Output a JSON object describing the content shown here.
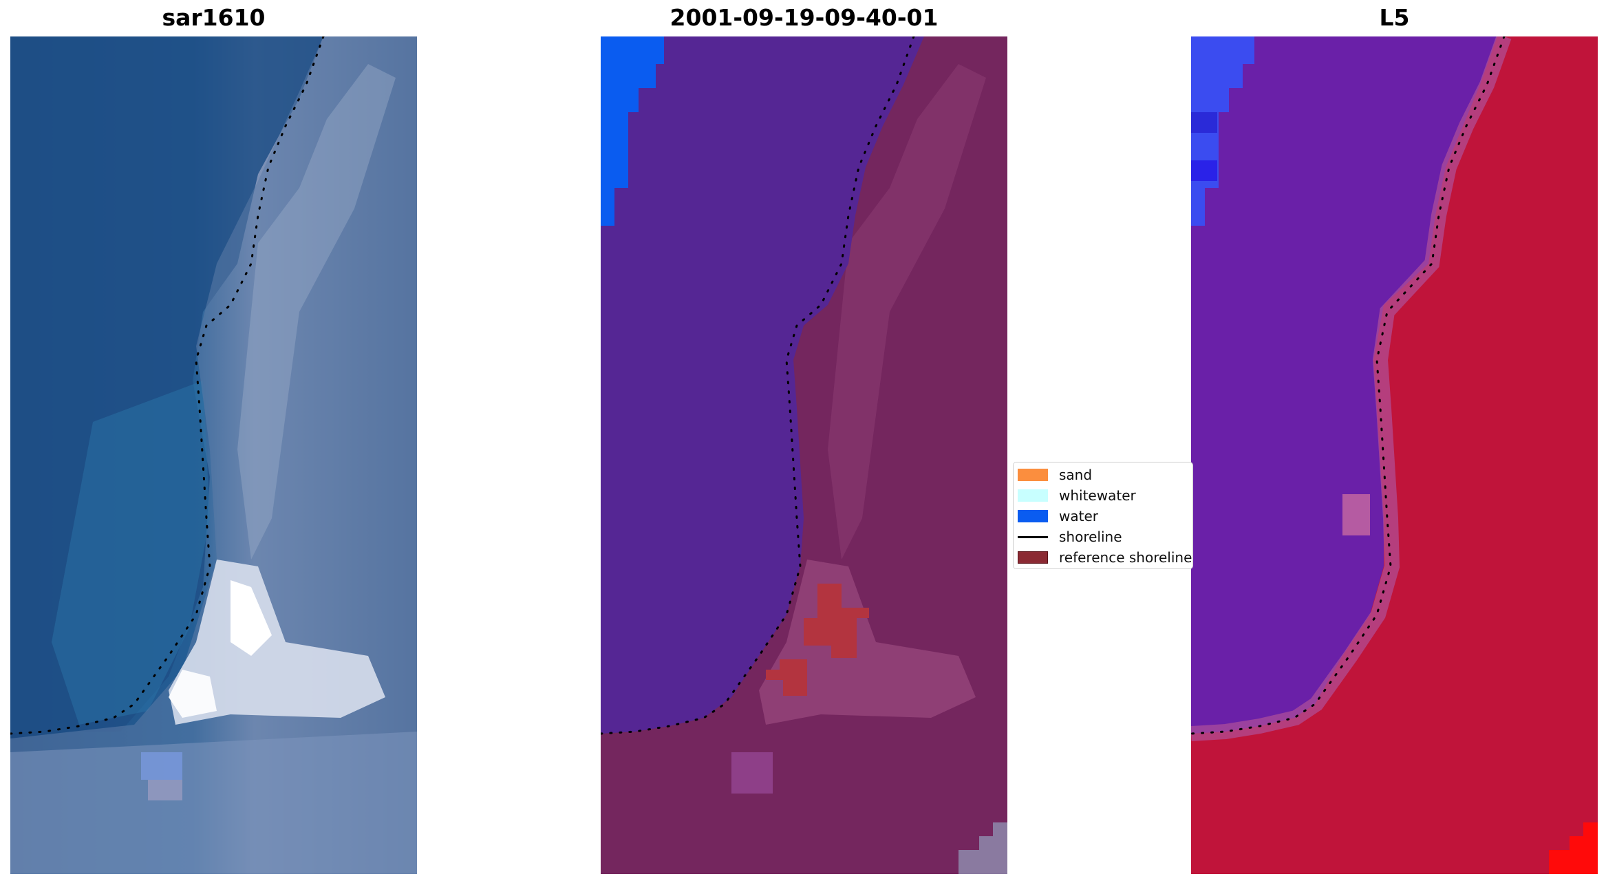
{
  "panels": [
    {
      "id": "rgb",
      "title": "sar1610"
    },
    {
      "id": "classified",
      "title": "2001-09-19-09-40-01"
    },
    {
      "id": "index",
      "title": "L5"
    }
  ],
  "legend": {
    "items": [
      {
        "label": "sand",
        "kind": "patch",
        "color": "#fb8e3e"
      },
      {
        "label": "whitewater",
        "kind": "patch",
        "color": "#c8ffff"
      },
      {
        "label": "water",
        "kind": "patch",
        "color": "#0a5cf0"
      },
      {
        "label": "shoreline",
        "kind": "line",
        "color": "#000000"
      },
      {
        "label": "reference shoreline",
        "kind": "patch",
        "color": "#8b2a33"
      }
    ]
  },
  "colors": {
    "rgb_water": "#1f4f86",
    "rgb_land": "#5b79a3",
    "rgb_bright": "#e8ecf4",
    "class_water": "#552694",
    "class_land": "#7a2660",
    "class_blue": "#0a5cf0",
    "class_red": "#b3343f",
    "index_water": "#6a20a8",
    "index_land": "#c0143a",
    "index_blue": "#3b4cf0",
    "index_red": "#ff0a0a"
  }
}
